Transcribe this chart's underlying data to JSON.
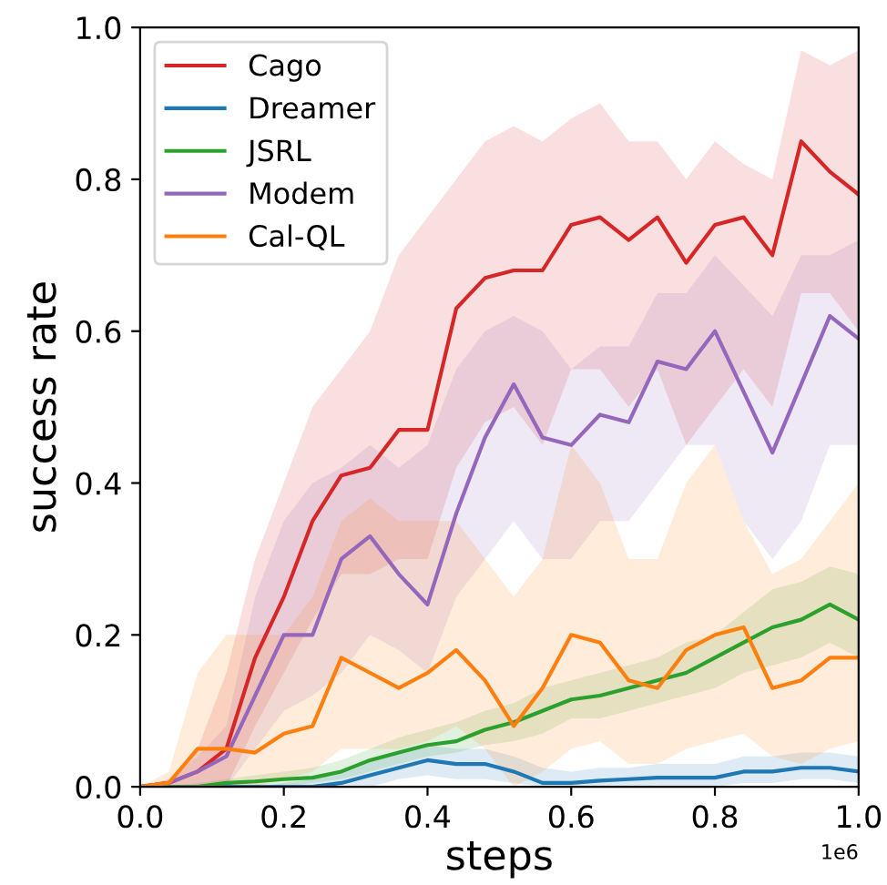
{
  "chart_data": {
    "type": "line",
    "xlabel": "steps",
    "ylabel": "success rate",
    "x": [
      0,
      0.04,
      0.08,
      0.12,
      0.16,
      0.2,
      0.24,
      0.28,
      0.32,
      0.36,
      0.4,
      0.44,
      0.48,
      0.52,
      0.56,
      0.6,
      0.64,
      0.68,
      0.72,
      0.76,
      0.8,
      0.84,
      0.88,
      0.92,
      0.96,
      1.0
    ],
    "series": [
      {
        "name": "Cago",
        "color": "#d62728",
        "values": [
          0,
          0.005,
          0.02,
          0.05,
          0.17,
          0.25,
          0.35,
          0.41,
          0.42,
          0.47,
          0.47,
          0.63,
          0.67,
          0.68,
          0.68,
          0.74,
          0.75,
          0.72,
          0.75,
          0.69,
          0.74,
          0.75,
          0.7,
          0.85,
          0.81,
          0.78
        ],
        "upper": [
          0,
          0.01,
          0.05,
          0.15,
          0.3,
          0.4,
          0.5,
          0.55,
          0.6,
          0.7,
          0.75,
          0.8,
          0.85,
          0.87,
          0.85,
          0.88,
          0.9,
          0.85,
          0.85,
          0.8,
          0.85,
          0.82,
          0.8,
          0.97,
          0.95,
          0.97
        ],
        "lower": [
          0,
          0,
          0,
          0,
          0.08,
          0.15,
          0.22,
          0.28,
          0.28,
          0.3,
          0.3,
          0.42,
          0.48,
          0.5,
          0.45,
          0.55,
          0.55,
          0.5,
          0.55,
          0.45,
          0.5,
          0.55,
          0.5,
          0.65,
          0.65,
          0.6
        ]
      },
      {
        "name": "Dreamer",
        "color": "#1f77b4",
        "values": [
          null,
          null,
          0,
          0,
          0,
          0,
          0,
          0.005,
          0.015,
          0.025,
          0.035,
          0.03,
          0.03,
          0.02,
          0.005,
          0.005,
          0.008,
          0.01,
          0.012,
          0.012,
          0.012,
          0.02,
          0.02,
          0.025,
          0.025,
          0.02
        ],
        "upper": [
          0,
          0,
          0,
          0,
          0,
          0.005,
          0.01,
          0.02,
          0.035,
          0.045,
          0.055,
          0.05,
          0.05,
          0.04,
          0.025,
          0.02,
          0.025,
          0.025,
          0.03,
          0.03,
          0.03,
          0.04,
          0.04,
          0.045,
          0.045,
          0.04
        ],
        "lower": [
          0,
          0,
          0,
          0,
          0,
          0,
          0,
          0,
          0,
          0.01,
          0.015,
          0.01,
          0.01,
          0.005,
          0,
          0,
          0,
          0,
          0,
          0,
          0,
          0.005,
          0.005,
          0.01,
          0.01,
          0.005
        ]
      },
      {
        "name": "JSRL",
        "color": "#2ca02c",
        "values": [
          0,
          0,
          0,
          0.005,
          0.007,
          0.01,
          0.012,
          0.02,
          0.035,
          0.045,
          0.055,
          0.06,
          0.075,
          0.085,
          0.1,
          0.115,
          0.12,
          0.13,
          0.14,
          0.15,
          0.17,
          0.19,
          0.21,
          0.22,
          0.24,
          0.22
        ],
        "upper": [
          0,
          0,
          0.005,
          0.01,
          0.015,
          0.02,
          0.025,
          0.035,
          0.05,
          0.065,
          0.075,
          0.085,
          0.1,
          0.11,
          0.13,
          0.14,
          0.15,
          0.16,
          0.17,
          0.19,
          0.2,
          0.23,
          0.26,
          0.27,
          0.29,
          0.28
        ],
        "lower": [
          0,
          0,
          0,
          0,
          0,
          0,
          0.005,
          0.01,
          0.02,
          0.03,
          0.04,
          0.045,
          0.055,
          0.06,
          0.07,
          0.09,
          0.09,
          0.1,
          0.11,
          0.12,
          0.13,
          0.15,
          0.16,
          0.17,
          0.19,
          0.17
        ]
      },
      {
        "name": "Modem",
        "color": "#9467bd",
        "values": [
          0,
          0.005,
          0.02,
          0.04,
          0.12,
          0.2,
          0.2,
          0.3,
          0.33,
          0.28,
          0.24,
          0.36,
          0.46,
          0.53,
          0.46,
          0.45,
          0.49,
          0.48,
          0.56,
          0.55,
          0.6,
          0.52,
          0.44,
          0.53,
          0.62,
          0.59
        ],
        "upper": [
          0,
          0.01,
          0.04,
          0.08,
          0.25,
          0.35,
          0.4,
          0.42,
          0.45,
          0.42,
          0.45,
          0.55,
          0.6,
          0.62,
          0.6,
          0.55,
          0.58,
          0.58,
          0.65,
          0.65,
          0.7,
          0.66,
          0.62,
          0.7,
          0.7,
          0.72
        ],
        "lower": [
          0,
          0,
          0,
          0,
          0.05,
          0.1,
          0.12,
          0.15,
          0.2,
          0.18,
          0.15,
          0.25,
          0.3,
          0.35,
          0.3,
          0.3,
          0.35,
          0.35,
          0.4,
          0.45,
          0.45,
          0.35,
          0.3,
          0.35,
          0.45,
          0.45
        ]
      },
      {
        "name": "Cal-QL",
        "color": "#ff7f0e",
        "values": [
          0,
          0.005,
          0.05,
          0.05,
          0.045,
          0.07,
          0.08,
          0.17,
          0.15,
          0.13,
          0.15,
          0.18,
          0.14,
          0.08,
          0.13,
          0.2,
          0.19,
          0.14,
          0.13,
          0.18,
          0.2,
          0.21,
          0.13,
          0.14,
          0.17,
          0.17
        ],
        "upper": [
          0,
          0.02,
          0.15,
          0.2,
          0.2,
          0.2,
          0.25,
          0.35,
          0.38,
          0.35,
          0.35,
          0.35,
          0.3,
          0.25,
          0.3,
          0.45,
          0.4,
          0.3,
          0.3,
          0.4,
          0.45,
          0.35,
          0.28,
          0.3,
          0.35,
          0.4
        ],
        "lower": [
          0,
          0,
          0,
          0,
          0,
          0.01,
          0.02,
          0.05,
          0.05,
          0.05,
          0.06,
          0.08,
          0.05,
          0,
          0.02,
          0.05,
          0.06,
          0.03,
          0.03,
          0.05,
          0.06,
          0.07,
          0.04,
          0.03,
          0.05,
          0.06
        ]
      }
    ],
    "xlim": [
      0,
      1.0
    ],
    "ylim": [
      0,
      1.0
    ],
    "xticks": [
      {
        "value": 0,
        "label": "0.0"
      },
      {
        "value": 0.2,
        "label": "0.2"
      },
      {
        "value": 0.4,
        "label": "0.4"
      },
      {
        "value": 0.6,
        "label": "0.6"
      },
      {
        "value": 0.8,
        "label": "0.8"
      },
      {
        "value": 1.0,
        "label": "1.0"
      }
    ],
    "yticks": [
      {
        "value": 0,
        "label": "0.0"
      },
      {
        "value": 0.2,
        "label": "0.2"
      },
      {
        "value": 0.4,
        "label": "0.4"
      },
      {
        "value": 0.6,
        "label": "0.6"
      },
      {
        "value": 0.8,
        "label": "0.8"
      },
      {
        "value": 1.0,
        "label": "1.0"
      }
    ],
    "annotations": [
      "1e6"
    ],
    "legend": "top left",
    "grid": false,
    "line_style": "solid",
    "marker": "none"
  }
}
